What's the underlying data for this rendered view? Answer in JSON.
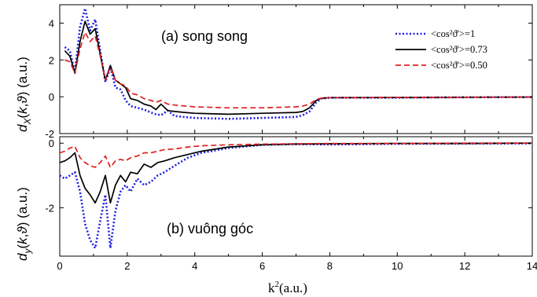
{
  "chart_data": [
    {
      "type": "line",
      "annotation": "(a) song song",
      "ylabel": "d_X(k,ϑ) (a.u.)",
      "xlim": [
        0,
        14
      ],
      "ylim": [
        -2,
        5
      ],
      "xticks": [
        0,
        2,
        4,
        6,
        8,
        10,
        12,
        14
      ],
      "yticks": [
        -2,
        0,
        2,
        4
      ],
      "legend_position": "top-right",
      "series": [
        {
          "name": "<cos²ϑ'>=1",
          "color": "#1f1fe0",
          "dash": "dotted",
          "x": [
            0.15,
            0.3,
            0.45,
            0.6,
            0.75,
            0.9,
            1.05,
            1.2,
            1.35,
            1.5,
            1.65,
            1.8,
            1.95,
            2.1,
            2.3,
            2.5,
            2.7,
            2.85,
            3.0,
            3.2,
            3.4,
            3.7,
            4.0,
            5.0,
            6.0,
            7.0,
            7.2,
            7.4,
            7.6,
            7.75,
            8,
            10,
            12,
            14
          ],
          "y": [
            2.7,
            2.5,
            1.3,
            3.8,
            4.8,
            3.6,
            4.2,
            2.5,
            0.8,
            1.6,
            0.5,
            0.4,
            -0.2,
            -0.5,
            -0.6,
            -0.7,
            -0.85,
            -0.95,
            -1.0,
            -0.75,
            -1.05,
            -1.1,
            -1.15,
            -1.2,
            -1.15,
            -1.1,
            -1.0,
            -0.8,
            -0.3,
            -0.1,
            -0.05,
            -0.05,
            -0.03,
            -0.02
          ]
        },
        {
          "name": "<cos²ϑ'>=0.73",
          "color": "#000000",
          "dash": "solid",
          "x": [
            0.15,
            0.3,
            0.45,
            0.6,
            0.75,
            0.9,
            1.05,
            1.2,
            1.35,
            1.5,
            1.65,
            1.8,
            1.95,
            2.1,
            2.3,
            2.5,
            2.7,
            2.85,
            3.0,
            3.2,
            3.4,
            3.7,
            4.0,
            5.0,
            6.0,
            7.0,
            7.2,
            7.4,
            7.6,
            7.75,
            8,
            10,
            12,
            14
          ],
          "y": [
            2.5,
            2.2,
            1.3,
            3.0,
            4.1,
            3.4,
            3.7,
            2.3,
            0.9,
            1.7,
            0.9,
            0.7,
            0.5,
            -0.1,
            -0.2,
            -0.4,
            -0.5,
            -0.7,
            -0.4,
            -0.75,
            -0.8,
            -0.85,
            -0.9,
            -0.95,
            -0.9,
            -0.85,
            -0.8,
            -0.6,
            -0.2,
            -0.08,
            -0.05,
            -0.04,
            -0.03,
            -0.02
          ]
        },
        {
          "name": "<cos²ϑ'>=0.50",
          "color": "#e02020",
          "dash": "dashed",
          "x": [
            0.15,
            0.3,
            0.45,
            0.6,
            0.75,
            0.9,
            1.05,
            1.2,
            1.35,
            1.5,
            1.65,
            1.8,
            1.95,
            2.1,
            2.3,
            2.5,
            2.7,
            2.85,
            3.0,
            3.2,
            3.4,
            3.7,
            4.0,
            5.0,
            6.0,
            7.0,
            7.2,
            7.4,
            7.6,
            7.75,
            8,
            10,
            12,
            14
          ],
          "y": [
            2.0,
            1.9,
            1.3,
            2.6,
            3.5,
            3.0,
            3.3,
            2.2,
            0.9,
            1.6,
            0.9,
            0.7,
            0.6,
            0.2,
            0.1,
            -0.1,
            -0.2,
            -0.3,
            -0.2,
            -0.4,
            -0.45,
            -0.5,
            -0.55,
            -0.6,
            -0.6,
            -0.55,
            -0.5,
            -0.4,
            -0.15,
            -0.07,
            -0.05,
            -0.04,
            -0.03,
            -0.02
          ]
        }
      ]
    },
    {
      "type": "line",
      "annotation": "(b) vuông góc",
      "ylabel": "d_y(k,ϑ) (a.u.)",
      "xlabel": "k²(a.u.)",
      "xlim": [
        0,
        14
      ],
      "ylim": [
        -3.5,
        0.2
      ],
      "xticks": [
        0,
        2,
        4,
        6,
        8,
        10,
        12,
        14
      ],
      "yticks": [
        -2,
        0
      ],
      "series": [
        {
          "name": "<cos²ϑ'>=1",
          "color": "#1f1fe0",
          "dash": "dotted",
          "x": [
            0,
            0.15,
            0.3,
            0.45,
            0.6,
            0.75,
            0.9,
            1.05,
            1.2,
            1.35,
            1.5,
            1.65,
            1.8,
            1.95,
            2.1,
            2.3,
            2.5,
            2.7,
            2.9,
            3.1,
            3.4,
            3.8,
            4.2,
            5,
            6,
            7,
            8,
            10,
            12,
            14
          ],
          "y": [
            -1.0,
            -1.1,
            -1.0,
            -0.9,
            -1.5,
            -2.5,
            -3.0,
            -3.25,
            -2.4,
            -1.6,
            -3.25,
            -2.1,
            -1.5,
            -1.3,
            -1.5,
            -1.1,
            -1.3,
            -1.2,
            -1.0,
            -0.9,
            -0.7,
            -0.45,
            -0.3,
            -0.15,
            -0.05,
            -0.03,
            -0.04,
            -0.02,
            -0.01,
            -0.01
          ]
        },
        {
          "name": "<cos²ϑ'>=0.73",
          "color": "#000000",
          "dash": "solid",
          "x": [
            0,
            0.15,
            0.3,
            0.45,
            0.6,
            0.75,
            0.9,
            1.05,
            1.2,
            1.35,
            1.5,
            1.65,
            1.8,
            1.95,
            2.1,
            2.3,
            2.5,
            2.7,
            2.9,
            3.1,
            3.4,
            3.8,
            4.2,
            5,
            6,
            7,
            8,
            10,
            12,
            14
          ],
          "y": [
            -0.6,
            -0.55,
            -0.45,
            -0.3,
            -1.0,
            -1.4,
            -1.6,
            -1.85,
            -1.5,
            -1.0,
            -1.85,
            -1.3,
            -1.0,
            -1.2,
            -0.9,
            -0.95,
            -0.65,
            -0.75,
            -0.6,
            -0.55,
            -0.45,
            -0.35,
            -0.25,
            -0.12,
            -0.05,
            -0.03,
            -0.02,
            -0.01,
            -0.01,
            0.0
          ]
        },
        {
          "name": "<cos²ϑ'>=0.50",
          "color": "#e02020",
          "dash": "dashed",
          "x": [
            0,
            0.15,
            0.3,
            0.45,
            0.6,
            0.75,
            0.9,
            1.05,
            1.2,
            1.35,
            1.5,
            1.65,
            1.8,
            1.95,
            2.1,
            2.3,
            2.5,
            2.7,
            2.9,
            3.1,
            3.4,
            3.8,
            4.2,
            5,
            6,
            7,
            8,
            10,
            12,
            14
          ],
          "y": [
            -0.3,
            -0.25,
            -0.15,
            -0.1,
            -0.45,
            -0.6,
            -0.7,
            -0.75,
            -0.6,
            -0.4,
            -0.75,
            -0.55,
            -0.5,
            -0.55,
            -0.45,
            -0.4,
            -0.3,
            -0.3,
            -0.25,
            -0.2,
            -0.18,
            -0.12,
            -0.08,
            -0.05,
            -0.03,
            -0.02,
            -0.01,
            -0.01,
            0.0,
            0.0
          ]
        }
      ]
    }
  ]
}
